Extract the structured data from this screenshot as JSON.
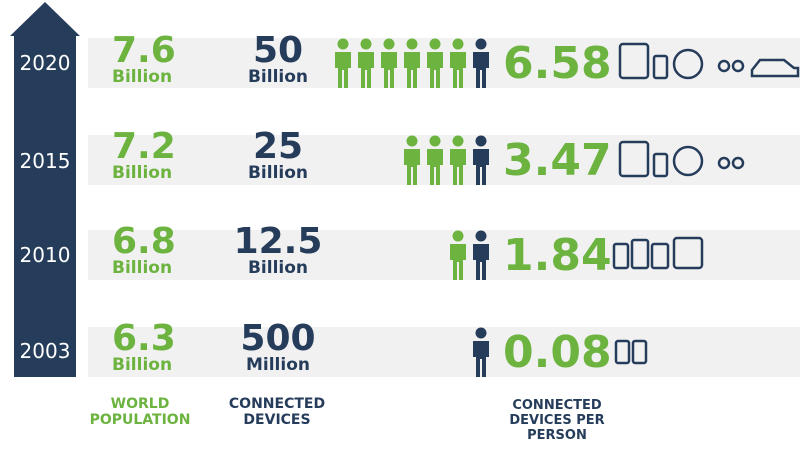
{
  "rows": [
    {
      "year": "2020",
      "population": "7.6",
      "population_unit": "Billion",
      "devices": "50",
      "devices_unit": "Billion",
      "per_person": "6.58"
    },
    {
      "year": "2015",
      "population": "7.2",
      "population_unit": "Billion",
      "devices": "25",
      "devices_unit": "Billion",
      "per_person": "3.47"
    },
    {
      "year": "2010",
      "population": "6.8",
      "population_unit": "Billion",
      "devices": "12.5",
      "devices_unit": "Billion",
      "per_person": "1.84"
    },
    {
      "year": "2003",
      "population": "6.3",
      "population_unit": "Billion",
      "devices": "500",
      "devices_unit": "Million",
      "per_person": "0.08"
    }
  ],
  "labels": {
    "population": "WORLD POPULATION",
    "devices": "CONNECTED DEVICES",
    "per_person": "CONNECTED DEVICES PER PERSON"
  }
}
